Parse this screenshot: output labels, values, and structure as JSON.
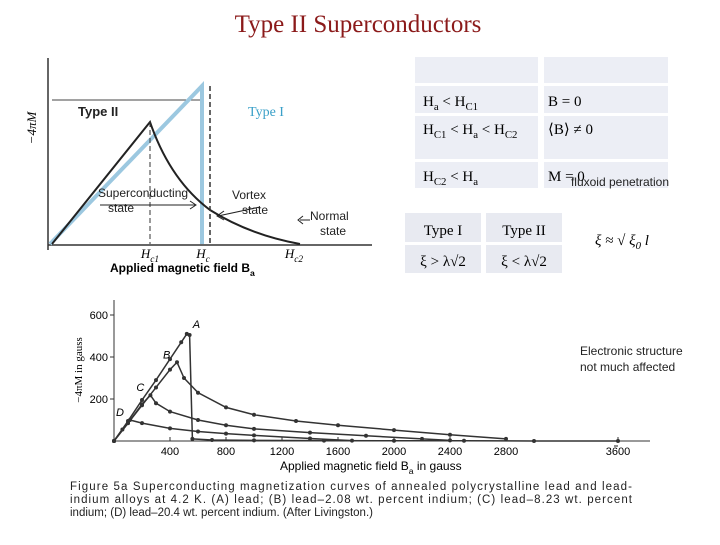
{
  "title": "Type II Superconductors",
  "figure_1": {
    "y_label": "−4πM",
    "type_ii": "Type II",
    "type_i": "Type I",
    "superconducting_state": [
      "Superconducting",
      "state"
    ],
    "vortex_state": [
      "Vortex",
      "state"
    ],
    "normal_state": [
      "Normal",
      "state"
    ],
    "h_c1": [
      "H",
      "c1"
    ],
    "h_c": [
      "H",
      "c"
    ],
    "h_c2": [
      "H",
      "c2"
    ],
    "x_label": [
      "Applied magnetic field B",
      "a"
    ]
  },
  "table_1": {
    "rows": [
      [
        [
          "H",
          "a",
          " < H",
          "C1"
        ],
        [
          "B = 0"
        ]
      ],
      [
        [
          "H",
          "C1",
          " < H",
          "a",
          " < H",
          "C2"
        ],
        [
          "⟨B⟩ ≠ 0"
        ]
      ],
      [
        [
          "H",
          "C2",
          " < H",
          "a"
        ],
        [
          "M = 0"
        ]
      ]
    ],
    "note": "fluxoid penetration"
  },
  "table_2": {
    "rows": [
      [
        "Type I",
        "Type II"
      ],
      [
        "ξ > λ√2",
        "ξ < λ√2"
      ]
    ]
  },
  "formula": [
    "ξ ≈ √ ξ",
    "0",
    " l"
  ],
  "remark": [
    "Electronic structure",
    "not much affected"
  ],
  "chart_data": {
    "type": "line",
    "y_label": "−4πM in gauss",
    "x_label": [
      "Applied magnetic field B",
      "a",
      " in gauss"
    ],
    "xlim": [
      0,
      3800
    ],
    "ylim": [
      0,
      650
    ],
    "xticks": [
      400,
      800,
      1200,
      1600,
      2000,
      2400,
      2800,
      3600
    ],
    "yticks": [
      200,
      400,
      600
    ],
    "series": [
      {
        "name": "A",
        "color": "#333333",
        "x": [
          0,
          100,
          200,
          300,
          400,
          480,
          520,
          540,
          560,
          700,
          1000,
          1500,
          2000,
          2500,
          3000,
          3600
        ],
        "values": [
          0,
          95,
          195,
          290,
          390,
          470,
          510,
          505,
          10,
          5,
          3,
          2,
          1,
          1,
          0,
          0
        ]
      },
      {
        "name": "B",
        "color": "#333333",
        "x": [
          0,
          100,
          200,
          300,
          400,
          450,
          500,
          600,
          800,
          1000,
          1300,
          1600,
          2000,
          2400,
          2800
        ],
        "values": [
          0,
          85,
          170,
          255,
          340,
          375,
          300,
          230,
          160,
          125,
          95,
          75,
          52,
          30,
          10
        ]
      },
      {
        "name": "C",
        "color": "#333333",
        "x": [
          0,
          100,
          200,
          260,
          300,
          400,
          600,
          800,
          1000,
          1400,
          1800,
          2200,
          2400
        ],
        "values": [
          0,
          85,
          175,
          218,
          180,
          140,
          100,
          75,
          58,
          40,
          25,
          10,
          3
        ]
      },
      {
        "name": "D",
        "color": "#333333",
        "x": [
          0,
          60,
          114,
          200,
          400,
          600,
          800,
          1000,
          1400,
          1700
        ],
        "values": [
          0,
          55,
          100,
          85,
          60,
          45,
          35,
          27,
          12,
          2
        ]
      }
    ],
    "caption": [
      "Figure 5a   Superconducting magnetization curves of annealed polycrystalline lead and lead-",
      "indium alloys at 4.2 K. (A) lead; (B) lead–2.08 wt. percent indium; (C) lead–8.23 wt. percent",
      "indium; (D) lead–20.4 wt. percent indium. (After Livingston.)"
    ]
  }
}
